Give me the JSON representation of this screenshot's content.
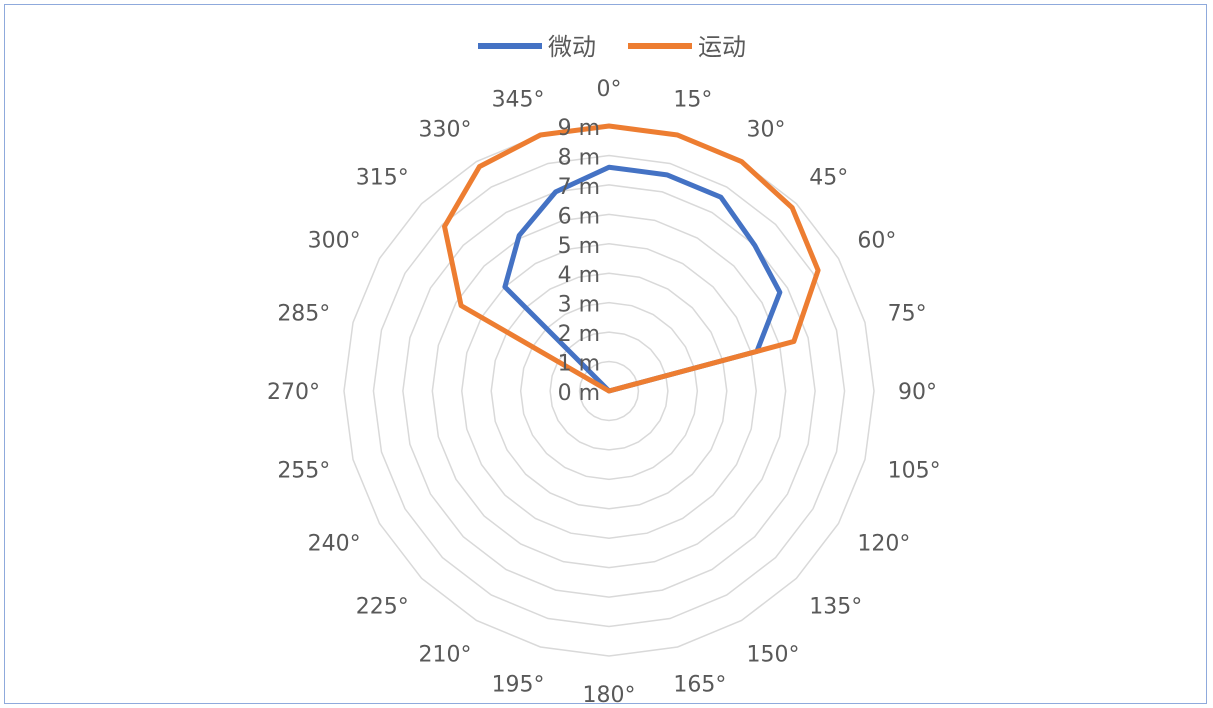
{
  "chart_data": {
    "type": "radar",
    "title": "",
    "categories": [
      "0°",
      "15°",
      "30°",
      "45°",
      "60°",
      "75°",
      "90°",
      "105°",
      "120°",
      "135°",
      "150°",
      "165°",
      "180°",
      "195°",
      "210°",
      "225°",
      "240°",
      "255°",
      "270°",
      "285°",
      "300°",
      "315°",
      "330°",
      "345°"
    ],
    "radial_tick_labels": [
      "0 m",
      "1 m",
      "2 m",
      "3 m",
      "4 m",
      "5 m",
      "6 m",
      "7 m",
      "8 m",
      "9 m"
    ],
    "rlim": [
      0,
      9
    ],
    "grid": true,
    "legend": "top",
    "series": [
      {
        "name": "微动",
        "color": "#4472c4",
        "values": [
          7.6,
          7.6,
          7.6,
          7.0,
          6.7,
          5.2,
          0,
          0,
          0,
          0,
          0,
          0,
          0,
          0,
          0,
          0,
          0,
          0,
          0,
          0,
          0,
          5.0,
          6.1,
          7.0
        ]
      },
      {
        "name": "运动",
        "color": "#ed7d31",
        "values": [
          9.0,
          9.0,
          9.0,
          8.8,
          8.2,
          6.5,
          0,
          0,
          0,
          0,
          0,
          0,
          0,
          0,
          0,
          0,
          0,
          0,
          0,
          0,
          5.8,
          7.9,
          8.8,
          9.0
        ]
      }
    ]
  }
}
